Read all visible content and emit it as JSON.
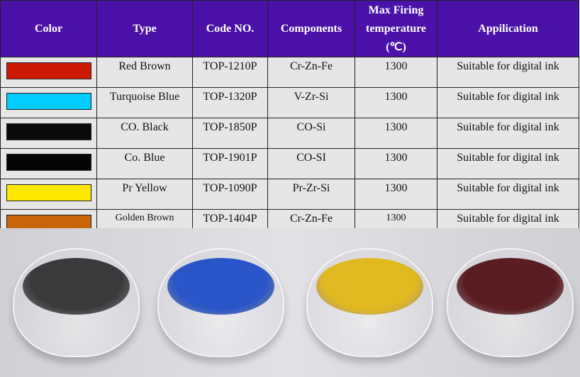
{
  "table": {
    "headers": [
      "Color",
      "Type",
      "Code NO.",
      "Components",
      "Max Firing temperature (℃)",
      "Appilication"
    ],
    "rows": [
      {
        "swatch": "#cc1a06",
        "type": "Red Brown",
        "code": "TOP-1210P",
        "components": "Cr-Zn-Fe",
        "temp": "1300",
        "application": "Suitable for digital ink"
      },
      {
        "swatch": "#00ccff",
        "type": "Turquoise Blue",
        "code": "TOP-1320P",
        "components": "V-Zr-Si",
        "temp": "1300",
        "application": "Suitable for digital ink"
      },
      {
        "swatch": "#0a0a0a",
        "type": "CO. Black",
        "code": "TOP-1850P",
        "components": "CO-Si",
        "temp": "1300",
        "application": "Suitable for digital ink"
      },
      {
        "swatch": "#050505",
        "type": "Co. Blue",
        "code": "TOP-1901P",
        "components": "CO-SI",
        "temp": "1300",
        "application": "Suitable for digital ink"
      },
      {
        "swatch": "#ffe800",
        "type": "Pr Yellow",
        "code": "TOP-1090P",
        "components": "Pr-Zr-Si",
        "temp": "1300",
        "application": "Suitable for digital ink"
      },
      {
        "swatch": "#c8650a",
        "type": "Golden Brown",
        "code": "TOP-1404P",
        "components": "Cr-Zn-Fe",
        "temp": "1300",
        "application": "Suitable for digital ink"
      }
    ]
  },
  "photos": {
    "powder_colors": [
      "#3a3a3c",
      "#2a55c8",
      "#e0b820",
      "#5a1e22"
    ]
  }
}
